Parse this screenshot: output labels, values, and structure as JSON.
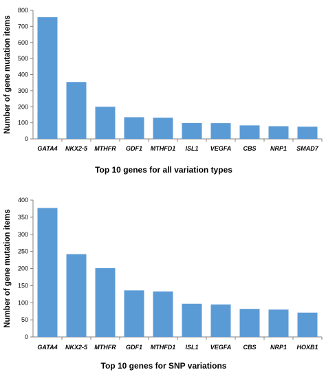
{
  "chart_data": [
    {
      "type": "bar",
      "title": "Top 10 genes for all variation types",
      "xlabel": "",
      "ylabel": "Number of gene mutation items",
      "ylim": [
        0,
        800
      ],
      "yticks": [
        0,
        100,
        200,
        300,
        400,
        500,
        600,
        700,
        800
      ],
      "grid": false,
      "bar_color": "#5b9bd5",
      "categories": [
        "GATA4",
        "NKX2-5",
        "MTHFR",
        "GDF1",
        "MTHFD1",
        "ISL1",
        "VEGFA",
        "CBS",
        "NRP1",
        "SMAD7"
      ],
      "values": [
        757,
        354,
        200,
        135,
        132,
        99,
        98,
        84,
        79,
        76
      ]
    },
    {
      "type": "bar",
      "title": "Top 10 genes for SNP variations",
      "xlabel": "",
      "ylabel": "Number of gene mutation items",
      "ylim": [
        0,
        400
      ],
      "yticks": [
        0,
        50,
        100,
        150,
        200,
        250,
        300,
        350,
        400
      ],
      "grid": false,
      "bar_color": "#5b9bd5",
      "categories": [
        "GATA4",
        "NKX2-5",
        "MTHFR",
        "GDF1",
        "MTHFD1",
        "ISL1",
        "VEGFA",
        "CBS",
        "NRP1",
        "HOXB1"
      ],
      "values": [
        377,
        242,
        201,
        136,
        133,
        97,
        95,
        82,
        80,
        71
      ]
    }
  ]
}
